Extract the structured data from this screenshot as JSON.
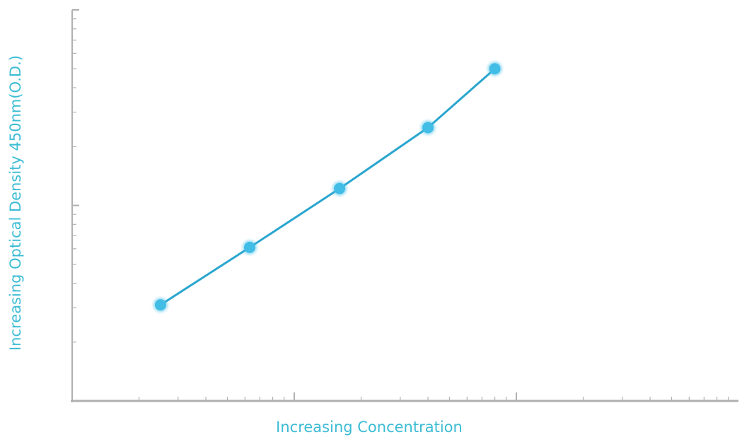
{
  "chart_data": {
    "type": "line",
    "title": "",
    "xlabel": "Increasing Concentration",
    "ylabel": "Increasing Optical Density 450nm(O.D.)",
    "x_scale": "log",
    "y_scale": "log",
    "xlim": [
      0.1,
      100
    ],
    "ylim": [
      0.1,
      10
    ],
    "grid": false,
    "legend": "none",
    "series": [
      {
        "x": [
          0.25,
          0.63,
          1.6,
          4.0,
          8.0
        ],
        "y": [
          0.31,
          0.61,
          1.22,
          2.5,
          5.0
        ]
      }
    ],
    "colors": {
      "line": "#2aa6cf",
      "marker": "#41bde6",
      "axis": "#b0b0b0",
      "label": "#3cbcd4"
    }
  }
}
